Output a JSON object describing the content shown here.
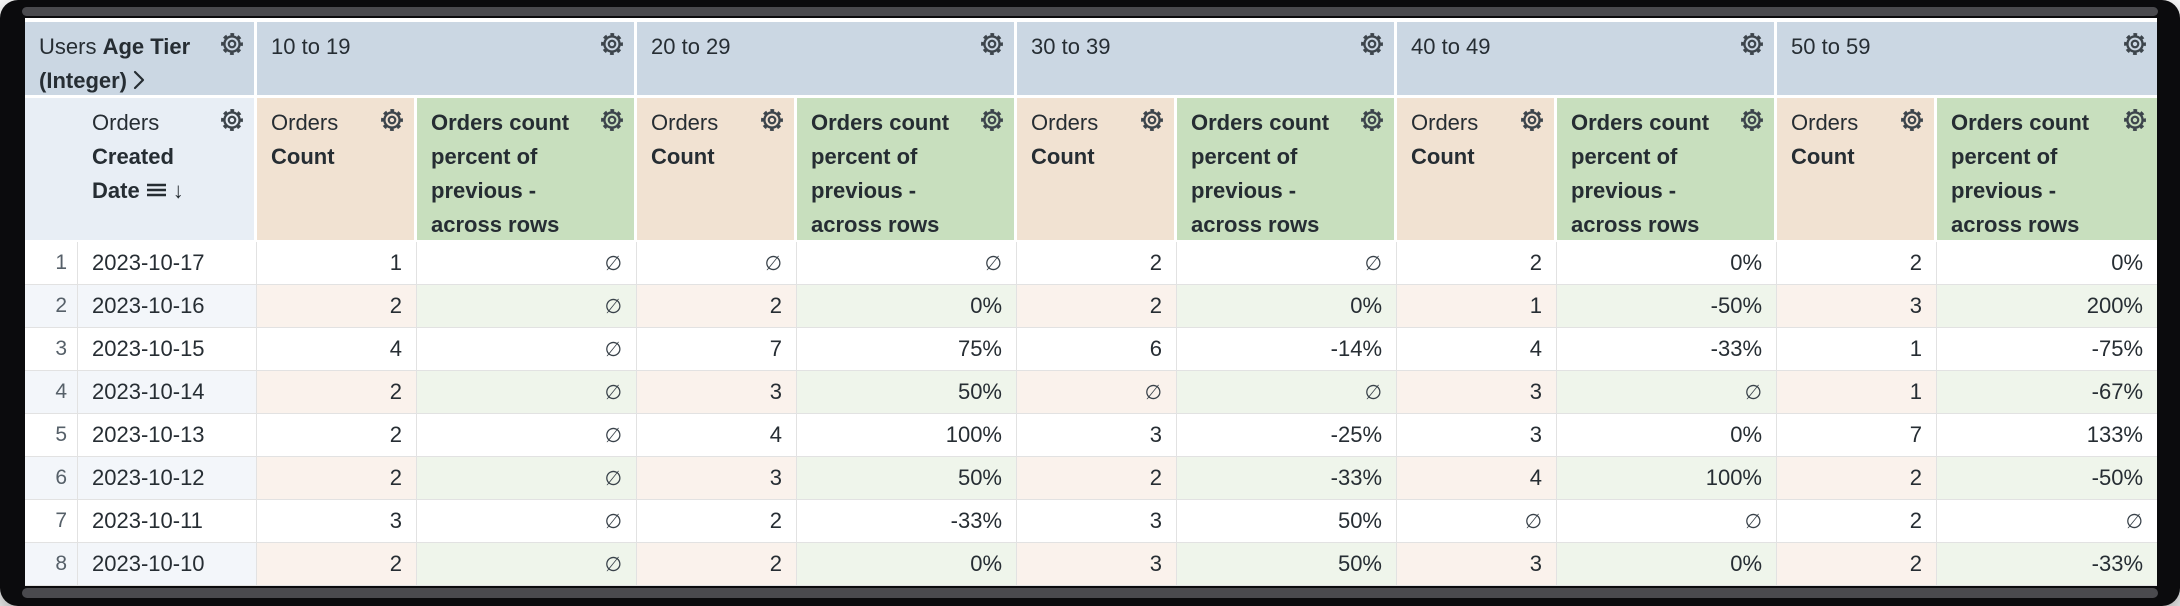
{
  "window": {
    "description": "Looker explore data table with pivoted age tiers",
    "frame_color": "#0b0b0d"
  },
  "colors": {
    "tier-header-bg": "#cbd7e3",
    "dimension-header-bg": "#e8eef5",
    "count-header-bg": "#f1e2d2",
    "percent-header-bg": "#c8dfbe",
    "row-even-dim-bg": "#f3f6fa",
    "row-even-count-bg": "#faf2ec",
    "row-even-percent-bg": "#eff5eb",
    "header-text": "#262d33",
    "cell-text": "#262d33",
    "row-number-text": "#566069",
    "grid-line": "#e2e2e2",
    "scrollbar": "#4a4a4e"
  },
  "icons": {
    "gear-icon": "settings cog (outlined)",
    "chevron-right-icon": "›",
    "list-icon": "☰",
    "sort-descending-icon": "↓"
  },
  "header": {
    "corner": {
      "view_label": "Users",
      "field_label": "Age Tier (Integer)"
    },
    "row_field": {
      "view_label": "Orders",
      "field_label": "Created Date",
      "sorted": "descending"
    },
    "tiers": [
      "10 to 19",
      "20 to 29",
      "30 to 39",
      "40 to 49",
      "50 to 59"
    ],
    "measures": {
      "count": {
        "view_label": "Orders",
        "field_label": "Count"
      },
      "percent": {
        "label": "Orders count percent of previous - across rows"
      }
    }
  },
  "table": {
    "null_symbol": "∅",
    "rows": [
      {
        "index": "1",
        "date": "2023-10-17",
        "values": [
          "1",
          "∅",
          "∅",
          "∅",
          "2",
          "∅",
          "2",
          "0%",
          "2",
          "0%"
        ]
      },
      {
        "index": "2",
        "date": "2023-10-16",
        "values": [
          "2",
          "∅",
          "2",
          "0%",
          "2",
          "0%",
          "1",
          "-50%",
          "3",
          "200%"
        ]
      },
      {
        "index": "3",
        "date": "2023-10-15",
        "values": [
          "4",
          "∅",
          "7",
          "75%",
          "6",
          "-14%",
          "4",
          "-33%",
          "1",
          "-75%"
        ]
      },
      {
        "index": "4",
        "date": "2023-10-14",
        "values": [
          "2",
          "∅",
          "3",
          "50%",
          "∅",
          "∅",
          "3",
          "∅",
          "1",
          "-67%"
        ]
      },
      {
        "index": "5",
        "date": "2023-10-13",
        "values": [
          "2",
          "∅",
          "4",
          "100%",
          "3",
          "-25%",
          "3",
          "0%",
          "7",
          "133%"
        ]
      },
      {
        "index": "6",
        "date": "2023-10-12",
        "values": [
          "2",
          "∅",
          "3",
          "50%",
          "2",
          "-33%",
          "4",
          "100%",
          "2",
          "-50%"
        ]
      },
      {
        "index": "7",
        "date": "2023-10-11",
        "values": [
          "3",
          "∅",
          "2",
          "-33%",
          "3",
          "50%",
          "∅",
          "∅",
          "2",
          "∅"
        ]
      },
      {
        "index": "8",
        "date": "2023-10-10",
        "values": [
          "2",
          "∅",
          "2",
          "0%",
          "3",
          "50%",
          "3",
          "0%",
          "2",
          "-33%"
        ]
      }
    ]
  }
}
